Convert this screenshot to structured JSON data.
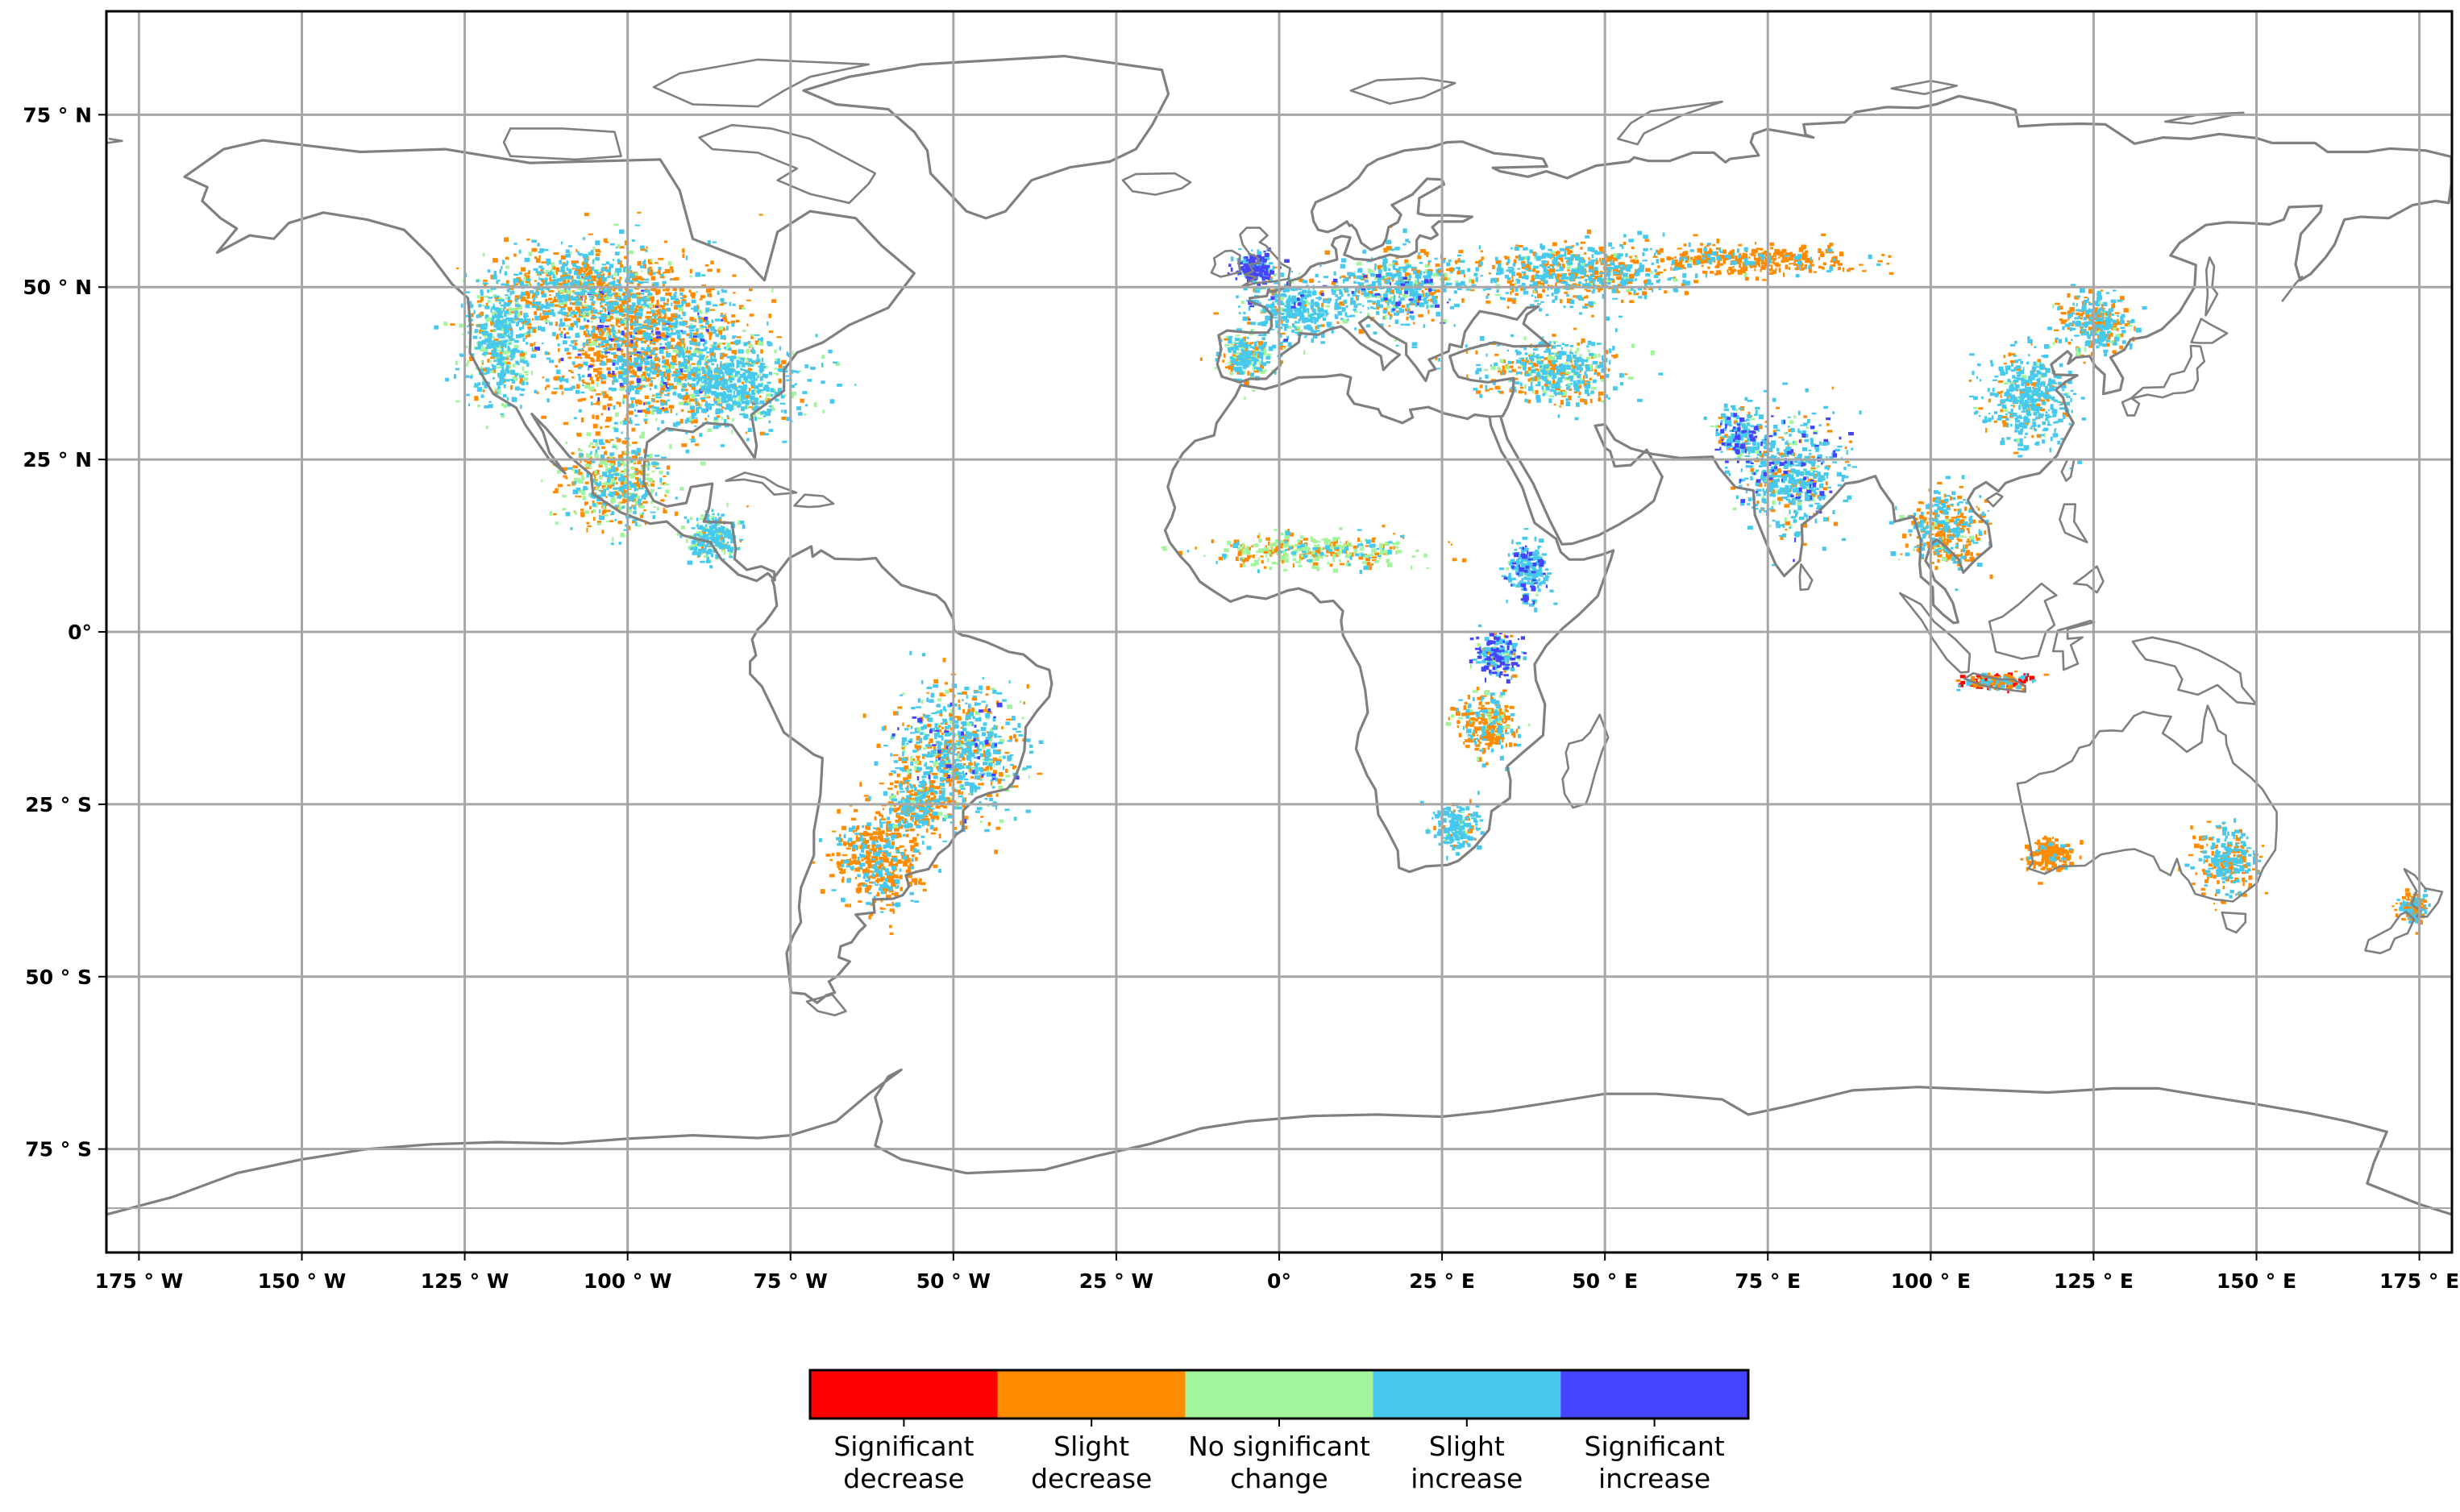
{
  "map": {
    "projection": "plate carree",
    "extent": {
      "lon": [
        -180,
        180
      ],
      "lat": [
        -90,
        90
      ]
    },
    "gridlines": true,
    "lon_ticks": [
      {
        "lon": -175,
        "label": "175 ° W"
      },
      {
        "lon": -150,
        "label": "150 ° W"
      },
      {
        "lon": -125,
        "label": "125 ° W"
      },
      {
        "lon": -100,
        "label": "100 ° W"
      },
      {
        "lon": -75,
        "label": "75 ° W"
      },
      {
        "lon": -50,
        "label": "50 ° W"
      },
      {
        "lon": -25,
        "label": "25 ° W"
      },
      {
        "lon": 0,
        "label": "0°"
      },
      {
        "lon": 25,
        "label": "25 ° E"
      },
      {
        "lon": 50,
        "label": "50 ° E"
      },
      {
        "lon": 75,
        "label": "75 ° E"
      },
      {
        "lon": 100,
        "label": "100 ° E"
      },
      {
        "lon": 125,
        "label": "125 ° E"
      },
      {
        "lon": 150,
        "label": "150 ° E"
      },
      {
        "lon": 175,
        "label": "175 ° E"
      }
    ],
    "lat_ticks": [
      {
        "lat": 75,
        "label": "75 ° N"
      },
      {
        "lat": 50,
        "label": "50 ° N"
      },
      {
        "lat": 25,
        "label": "25 ° N"
      },
      {
        "lat": 0,
        "label": "0°"
      },
      {
        "lat": -25,
        "label": "25 ° S"
      },
      {
        "lat": -50,
        "label": "50 ° S"
      },
      {
        "lat": -75,
        "label": "75 ° S"
      }
    ],
    "colors": {
      "coastline": "#808080",
      "grid": "#a6a6a6",
      "frame": "#000000"
    }
  },
  "legend": {
    "placement": "bottom-center",
    "classes": [
      {
        "label": "Significant decrease",
        "color": "#ff0000"
      },
      {
        "label": "Slight decrease",
        "color": "#ff8c00"
      },
      {
        "label": "No significant change",
        "color": "#a2f59b"
      },
      {
        "label": "Slight increase",
        "color": "#47c9ee"
      },
      {
        "label": "Significant increase",
        "color": "#4444ff"
      }
    ]
  },
  "regions": [
    {
      "name": "north-america-central",
      "lon": -98,
      "lat": 42,
      "rlon": 14,
      "rlat": 10,
      "mix": [
        0,
        0.55,
        0.05,
        0.35,
        0.05
      ]
    },
    {
      "name": "north-america-plains",
      "lon": -108,
      "lat": 50,
      "rlon": 12,
      "rlat": 5,
      "mix": [
        0,
        0.45,
        0.1,
        0.45,
        0
      ]
    },
    {
      "name": "north-america-west",
      "lon": -120,
      "lat": 42,
      "rlon": 5,
      "rlat": 8,
      "mix": [
        0,
        0.1,
        0.3,
        0.6,
        0
      ]
    },
    {
      "name": "north-america-southeast",
      "lon": -85,
      "lat": 36,
      "rlon": 10,
      "rlat": 6,
      "mix": [
        0,
        0.1,
        0.2,
        0.7,
        0
      ]
    },
    {
      "name": "mexico",
      "lon": -102,
      "lat": 22,
      "rlon": 7,
      "rlat": 6,
      "mix": [
        0,
        0.4,
        0.3,
        0.3,
        0
      ]
    },
    {
      "name": "central-america",
      "lon": -87,
      "lat": 14,
      "rlon": 4,
      "rlat": 3,
      "mix": [
        0,
        0.1,
        0.3,
        0.6,
        0
      ]
    },
    {
      "name": "brazil-central",
      "lon": -50,
      "lat": -17,
      "rlon": 9,
      "rlat": 8,
      "mix": [
        0,
        0.35,
        0.1,
        0.5,
        0.05
      ]
    },
    {
      "name": "argentina-pampas",
      "lon": -62,
      "lat": -33,
      "rlon": 6,
      "rlat": 6,
      "mix": [
        0,
        0.7,
        0,
        0.3,
        0
      ]
    },
    {
      "name": "paraguay",
      "lon": -56,
      "lat": -25,
      "rlon": 5,
      "rlat": 4,
      "mix": [
        0,
        0.5,
        0.1,
        0.4,
        0
      ]
    },
    {
      "name": "europe-west",
      "lon": 2,
      "lat": 47,
      "rlon": 7,
      "rlat": 4,
      "mix": [
        0,
        0.1,
        0.1,
        0.75,
        0.05
      ]
    },
    {
      "name": "europe-central",
      "lon": 18,
      "lat": 50,
      "rlon": 8,
      "rlat": 5,
      "mix": [
        0,
        0.2,
        0.1,
        0.65,
        0.05
      ]
    },
    {
      "name": "uk-ireland",
      "lon": -4,
      "lat": 53,
      "rlon": 3,
      "rlat": 2,
      "mix": [
        0,
        0,
        0,
        0.4,
        0.6
      ]
    },
    {
      "name": "iberia",
      "lon": -5,
      "lat": 40,
      "rlon": 4,
      "rlat": 3,
      "mix": [
        0,
        0.2,
        0.3,
        0.5,
        0
      ]
    },
    {
      "name": "ukraine-russia-steppe",
      "lon": 45,
      "lat": 52,
      "rlon": 15,
      "rlat": 4,
      "mix": [
        0,
        0.45,
        0.05,
        0.5,
        0
      ]
    },
    {
      "name": "kazakhstan-siberia",
      "lon": 72,
      "lat": 54,
      "rlon": 14,
      "rlat": 2,
      "mix": [
        0,
        0.85,
        0,
        0.15,
        0
      ]
    },
    {
      "name": "turkey-iran",
      "lon": 42,
      "lat": 38,
      "rlon": 10,
      "rlat": 4,
      "mix": [
        0,
        0.3,
        0.2,
        0.5,
        0
      ]
    },
    {
      "name": "india",
      "lon": 78,
      "lat": 23,
      "rlon": 7,
      "rlat": 7,
      "mix": [
        0,
        0.15,
        0.05,
        0.7,
        0.1
      ]
    },
    {
      "name": "pakistan",
      "lon": 70,
      "lat": 29,
      "rlon": 3,
      "rlat": 3,
      "mix": [
        0,
        0.1,
        0.1,
        0.6,
        0.2
      ]
    },
    {
      "name": "north-china-plain",
      "lon": 115,
      "lat": 34,
      "rlon": 6,
      "rlat": 6,
      "mix": [
        0,
        0.2,
        0.05,
        0.75,
        0
      ]
    },
    {
      "name": "northeast-china",
      "lon": 125,
      "lat": 45,
      "rlon": 5,
      "rlat": 4,
      "mix": [
        0,
        0.35,
        0.05,
        0.6,
        0
      ]
    },
    {
      "name": "southeast-asia",
      "lon": 102,
      "lat": 15,
      "rlon": 5,
      "rlat": 5,
      "mix": [
        0,
        0.55,
        0.05,
        0.4,
        0
      ]
    },
    {
      "name": "sahel",
      "lon": 5,
      "lat": 12,
      "rlon": 14,
      "rlat": 2,
      "mix": [
        0,
        0.35,
        0.5,
        0.15,
        0
      ]
    },
    {
      "name": "ethiopia",
      "lon": 38,
      "lat": 9,
      "rlon": 3,
      "rlat": 4,
      "mix": [
        0,
        0,
        0.1,
        0.7,
        0.2
      ]
    },
    {
      "name": "east-africa",
      "lon": 33,
      "lat": -3,
      "rlon": 3,
      "rlat": 3,
      "mix": [
        0,
        0.1,
        0.1,
        0.4,
        0.4
      ]
    },
    {
      "name": "southeast-africa",
      "lon": 32,
      "lat": -13,
      "rlon": 4,
      "rlat": 4,
      "mix": [
        0,
        0.6,
        0.1,
        0.3,
        0
      ]
    },
    {
      "name": "south-africa",
      "lon": 27,
      "lat": -28,
      "rlon": 3,
      "rlat": 3,
      "mix": [
        0,
        0.1,
        0.1,
        0.8,
        0
      ]
    },
    {
      "name": "australia-southwest",
      "lon": 118,
      "lat": -32,
      "rlon": 3,
      "rlat": 2,
      "mix": [
        0,
        0.9,
        0,
        0.1,
        0
      ]
    },
    {
      "name": "australia-southeast",
      "lon": 145,
      "lat": -33,
      "rlon": 4,
      "rlat": 4,
      "mix": [
        0,
        0.5,
        0,
        0.5,
        0
      ]
    },
    {
      "name": "indonesia-java",
      "lon": 110,
      "lat": -7,
      "rlon": 5,
      "rlat": 1,
      "mix": [
        0.4,
        0.4,
        0,
        0.2,
        0
      ]
    },
    {
      "name": "new-zealand",
      "lon": 174,
      "lat": -40,
      "rlon": 2,
      "rlat": 2,
      "mix": [
        0,
        0.6,
        0,
        0.4,
        0
      ]
    }
  ]
}
